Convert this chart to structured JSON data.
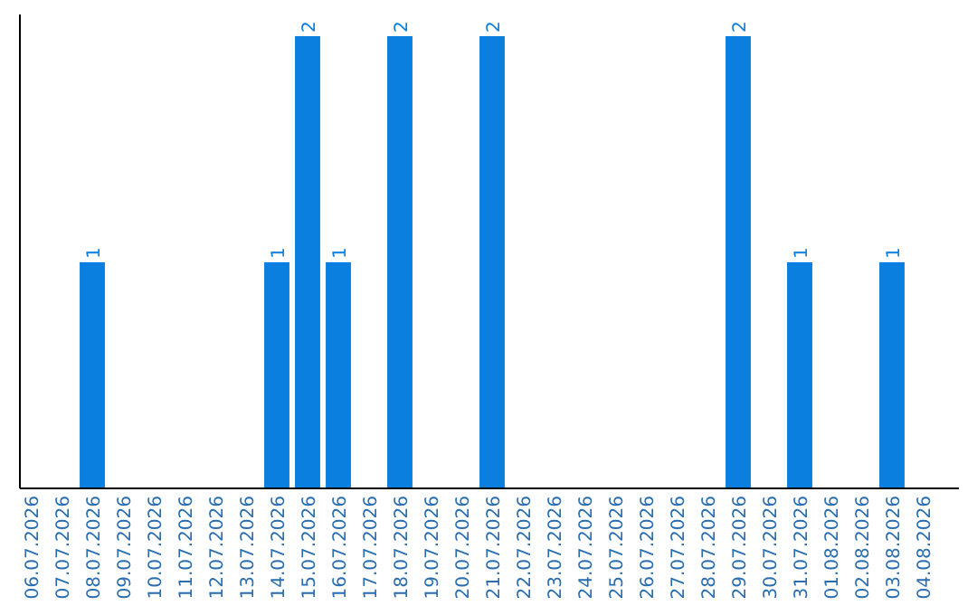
{
  "chart_data": {
    "type": "bar",
    "categories": [
      "06.07.2026",
      "07.07.2026",
      "08.07.2026",
      "09.07.2026",
      "10.07.2026",
      "11.07.2026",
      "12.07.2026",
      "13.07.2026",
      "14.07.2026",
      "15.07.2026",
      "16.07.2026",
      "17.07.2026",
      "18.07.2026",
      "19.07.2026",
      "20.07.2026",
      "21.07.2026",
      "22.07.2026",
      "23.07.2026",
      "24.07.2026",
      "25.07.2026",
      "26.07.2026",
      "27.07.2026",
      "28.07.2026",
      "29.07.2026",
      "30.07.2026",
      "31.07.2026",
      "01.08.2026",
      "02.08.2026",
      "03.08.2026",
      "04.08.2026"
    ],
    "values": [
      0,
      0,
      1,
      0,
      0,
      0,
      0,
      0,
      1,
      2,
      1,
      0,
      2,
      0,
      0,
      2,
      0,
      0,
      0,
      0,
      0,
      0,
      0,
      2,
      0,
      1,
      0,
      0,
      1,
      0
    ],
    "value_labels": [
      null,
      null,
      "1",
      null,
      null,
      null,
      null,
      null,
      "1",
      "2",
      "1",
      null,
      "2",
      null,
      null,
      "2",
      null,
      null,
      null,
      null,
      null,
      null,
      null,
      "2",
      null,
      "1",
      null,
      null,
      "1",
      null
    ],
    "color": "#0a7fe0",
    "ylim": [
      0,
      2
    ],
    "tick_labels": "x"
  }
}
